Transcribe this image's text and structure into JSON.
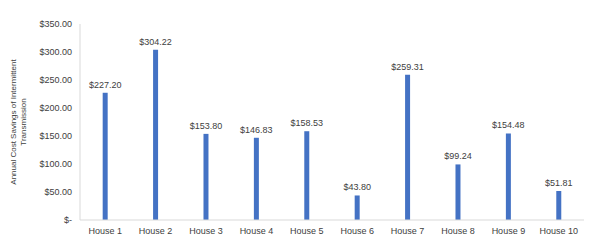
{
  "chart_data": {
    "type": "bar",
    "y_label": "Annual Cost Savings of Intermittent Transmission",
    "categories": [
      "House 1",
      "House 2",
      "House 3",
      "House 4",
      "House 5",
      "House 6",
      "House 7",
      "House 8",
      "House 9",
      "House 10"
    ],
    "values": [
      227.2,
      304.22,
      153.8,
      146.83,
      158.53,
      43.8,
      259.31,
      99.24,
      154.48,
      51.81
    ],
    "value_labels": [
      "$227.20",
      "$304.22",
      "$153.80",
      "$146.83",
      "$158.53",
      "$43.80",
      "$259.31",
      "$99.24",
      "$154.48",
      "$51.81"
    ],
    "data_labels": true,
    "color": "#4472c4",
    "ylim": [
      0,
      350
    ],
    "yticks": [
      {
        "value": 0,
        "label": "$-"
      },
      {
        "value": 50,
        "label": "$50.00"
      },
      {
        "value": 100,
        "label": "$100.00"
      },
      {
        "value": 150,
        "label": "$150.00"
      },
      {
        "value": 200,
        "label": "$200.00"
      },
      {
        "value": 250,
        "label": "$250.00"
      },
      {
        "value": 300,
        "label": "$300.00"
      },
      {
        "value": 350,
        "label": "$350.00"
      }
    ],
    "grid": false
  }
}
